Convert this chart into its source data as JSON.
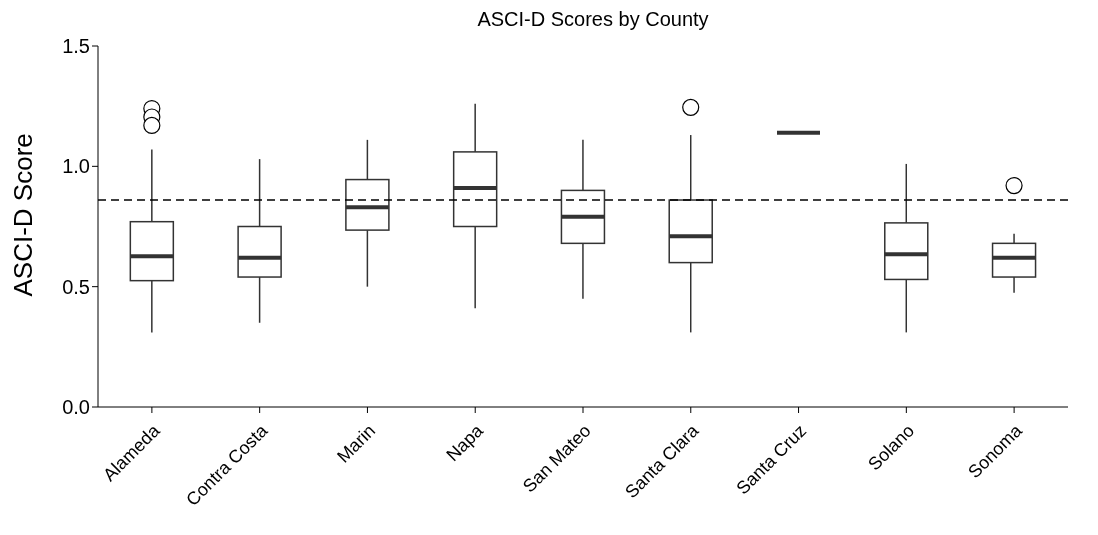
{
  "chart_data": {
    "type": "box",
    "title": "ASCI-D Scores by County",
    "ylabel": "ASCI-D Score",
    "categories": [
      "Alameda",
      "Contra Costa",
      "Marin",
      "Napa",
      "San Mateo",
      "Santa Clara",
      "Santa Cruz",
      "Solano",
      "Sonoma"
    ],
    "boxes": [
      {
        "low": 0.31,
        "q1": 0.525,
        "median": 0.626,
        "q3": 0.77,
        "high": 1.07,
        "outliers": [
          1.24,
          1.205,
          1.17
        ]
      },
      {
        "low": 0.35,
        "q1": 0.54,
        "median": 0.62,
        "q3": 0.75,
        "high": 1.03
      },
      {
        "low": 0.5,
        "q1": 0.735,
        "median": 0.83,
        "q3": 0.945,
        "high": 1.11
      },
      {
        "low": 0.41,
        "q1": 0.75,
        "median": 0.91,
        "q3": 1.06,
        "high": 1.26
      },
      {
        "low": 0.45,
        "q1": 0.68,
        "median": 0.79,
        "q3": 0.9,
        "high": 1.11
      },
      {
        "low": 0.31,
        "q1": 0.6,
        "median": 0.71,
        "q3": 0.86,
        "high": 1.13,
        "outliers": [
          1.245
        ]
      },
      {
        "low": 1.14,
        "q1": 1.14,
        "median": 1.14,
        "q3": 1.14,
        "high": 1.14
      },
      {
        "low": 0.31,
        "q1": 0.53,
        "median": 0.635,
        "q3": 0.765,
        "high": 1.01
      },
      {
        "low": 0.475,
        "q1": 0.54,
        "median": 0.62,
        "q3": 0.68,
        "high": 0.72,
        "outliers": [
          0.92
        ]
      }
    ],
    "ylim": [
      0,
      1.5
    ],
    "yticks": [
      {
        "value": 0,
        "label": "0.0"
      },
      {
        "value": 0.5,
        "label": "0.5"
      },
      {
        "value": 1,
        "label": "1.0"
      },
      {
        "value": 1.5,
        "label": "1.5"
      }
    ],
    "ref_lines": [
      {
        "axis": "y",
        "value": 0.86,
        "line_style": "dashed"
      }
    ],
    "grid": false,
    "legend": false
  }
}
